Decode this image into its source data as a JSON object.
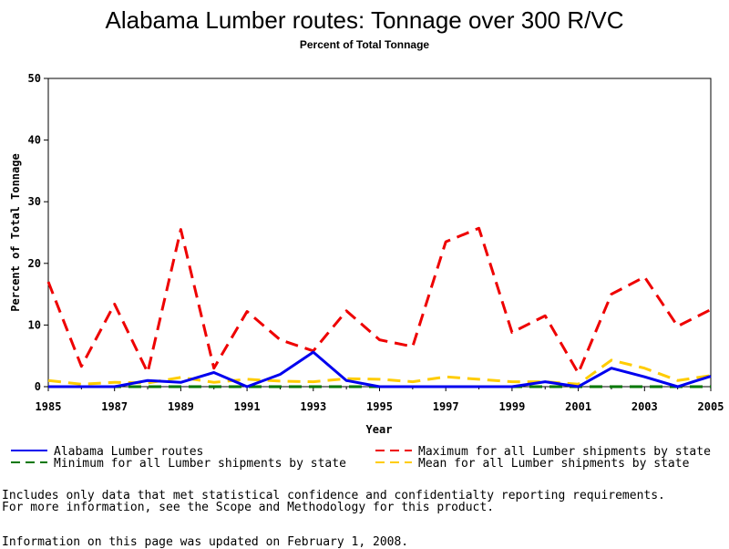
{
  "chart_data": {
    "type": "line",
    "title": "Alabama Lumber routes: Tonnage over 300 R/VC",
    "subtitle": "Percent of Total Tonnage",
    "xlabel": "Year",
    "ylabel": "Percent of Total Tonnage",
    "xlim": [
      1985,
      2005
    ],
    "ylim": [
      0,
      50
    ],
    "x_ticks": [
      "1985",
      "1987",
      "1989",
      "1991",
      "1993",
      "1995",
      "1997",
      "1999",
      "2001",
      "2003",
      "2005"
    ],
    "y_ticks": [
      "0",
      "10",
      "20",
      "30",
      "40",
      "50"
    ],
    "x": [
      1985,
      1986,
      1987,
      1988,
      1989,
      1990,
      1991,
      1992,
      1993,
      1994,
      1995,
      1996,
      1997,
      1998,
      1999,
      2000,
      2001,
      2002,
      2003,
      2004,
      2005
    ],
    "series": [
      {
        "name": "Alabama Lumber routes",
        "color": "#0000ee",
        "dash": "solid",
        "values": [
          0,
          0,
          0,
          1,
          0.7,
          2.3,
          0,
          2,
          5.6,
          1,
          0,
          0,
          0,
          0,
          0,
          0.8,
          0,
          3,
          1.6,
          0,
          1.7
        ]
      },
      {
        "name": "Maximum for all Lumber shipments by state",
        "color": "#ee0000",
        "dash": "dashed",
        "values": [
          17,
          3.3,
          13.4,
          2.3,
          25.5,
          3,
          12.2,
          7.6,
          5.8,
          12.3,
          7.6,
          6.5,
          23.5,
          25.7,
          8.8,
          11.5,
          2.2,
          15,
          17.8,
          9.8,
          12.5
        ]
      },
      {
        "name": "Minimum for all Lumber shipments by state",
        "color": "#007700",
        "dash": "dashed",
        "values": [
          0,
          0,
          0,
          0,
          0,
          0,
          0,
          0,
          0,
          0,
          0,
          0,
          0,
          0,
          0,
          0,
          0,
          0,
          0,
          0,
          0
        ]
      },
      {
        "name": "Mean for all Lumber shipments by state",
        "color": "#ffcc00",
        "dash": "dashed",
        "values": [
          1,
          0.4,
          0.7,
          0.6,
          1.5,
          0.7,
          1.2,
          0.9,
          0.8,
          1.3,
          1.2,
          0.8,
          1.6,
          1.2,
          0.8,
          0.8,
          0.4,
          4.3,
          3,
          1,
          1.8
        ]
      }
    ],
    "grid": false,
    "legend_position": "bottom"
  },
  "footnotes": {
    "line1": "Includes only data that met statistical confidence and confidentialty reporting requirements.",
    "line2": "For more information, see the Scope and Methodology for this product.",
    "line3": "Information on this page was updated on February 1, 2008."
  }
}
